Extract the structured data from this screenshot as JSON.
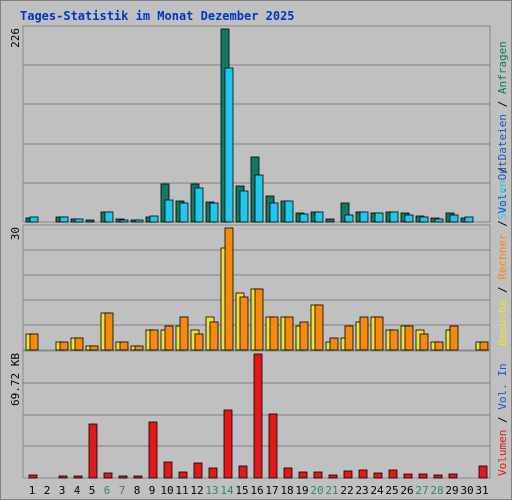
{
  "chart_data": {
    "type": "bar",
    "title": "Tages-Statistik im Monat Dezember 2025",
    "categories": [
      "1",
      "2",
      "3",
      "4",
      "5",
      "6",
      "7",
      "8",
      "9",
      "10",
      "11",
      "12",
      "13",
      "14",
      "15",
      "16",
      "17",
      "18",
      "19",
      "20",
      "21",
      "22",
      "23",
      "24",
      "25",
      "26",
      "27",
      "28",
      "29",
      "30",
      "31"
    ],
    "weekend_days": [
      6,
      7,
      13,
      14,
      20,
      21,
      27,
      28
    ],
    "panels": [
      {
        "id": "requests",
        "scale_label": "226",
        "ylim": [
          0,
          226
        ],
        "series": [
          {
            "name": "Anfragen",
            "color": "#0f7a63",
            "values": [
              5,
              0,
              6,
              4,
              1,
              12,
              3,
              2,
              6,
              45,
              25,
              45,
              23,
              226,
              42,
              76,
              30,
              25,
              10,
              12,
              3,
              22,
              12,
              10,
              12,
              10,
              7,
              5,
              10,
              5,
              0
            ]
          },
          {
            "name": "Dateien",
            "color": "#1e57c2",
            "values": []
          },
          {
            "name": "Seiten",
            "color": "#22c7ee",
            "values": [
              6,
              0,
              6,
              4,
              0,
              12,
              2,
              1,
              7,
              26,
              22,
              40,
              22,
              180,
              36,
              55,
              22,
              25,
              9,
              12,
              0,
              8,
              12,
              10,
              12,
              8,
              6,
              3,
              8,
              6,
              0
            ]
          }
        ]
      },
      {
        "id": "visits",
        "scale_label": "30",
        "ylim": [
          0,
          30
        ],
        "series": [
          {
            "name": "Besuche",
            "color": "#ece232",
            "values": [
              4,
              0,
              2,
              3,
              1,
              9,
              2,
              1,
              5,
              5,
              6,
              5,
              8,
              25,
              14,
              15,
              8,
              8,
              6,
              11,
              2,
              3,
              7,
              8,
              5,
              6,
              5,
              2,
              5,
              0,
              2
            ]
          },
          {
            "name": "Rechner",
            "color": "#f58a0e",
            "values": [
              4,
              0,
              2,
              3,
              1,
              9,
              2,
              1,
              5,
              6,
              8,
              4,
              7,
              30,
              13,
              15,
              8,
              8,
              7,
              11,
              3,
              6,
              8,
              8,
              5,
              6,
              4,
              2,
              6,
              0,
              2
            ]
          }
        ]
      },
      {
        "id": "volume",
        "scale_label": "69.72 KB",
        "ylim": [
          0,
          69.72
        ],
        "series": [
          {
            "name": "Vol. Out",
            "color": "#1e57c2",
            "values": []
          },
          {
            "name": "Vol. In",
            "color": "#1e57c2",
            "values": []
          },
          {
            "name": "Volumen",
            "color": "#e11919",
            "values": [
              1.6,
              0,
              1.2,
              1.2,
              30.5,
              2.8,
              1.2,
              1.2,
              31.5,
              9.2,
              3.2,
              8.3,
              5.6,
              38.0,
              6.5,
              69.72,
              36.0,
              5.4,
              3.2,
              3.3,
              1.5,
              4.0,
              4.5,
              3.0,
              4.5,
              2.5,
              2.5,
              1.7,
              2.0,
              0,
              7.0
            ]
          }
        ]
      }
    ]
  }
}
